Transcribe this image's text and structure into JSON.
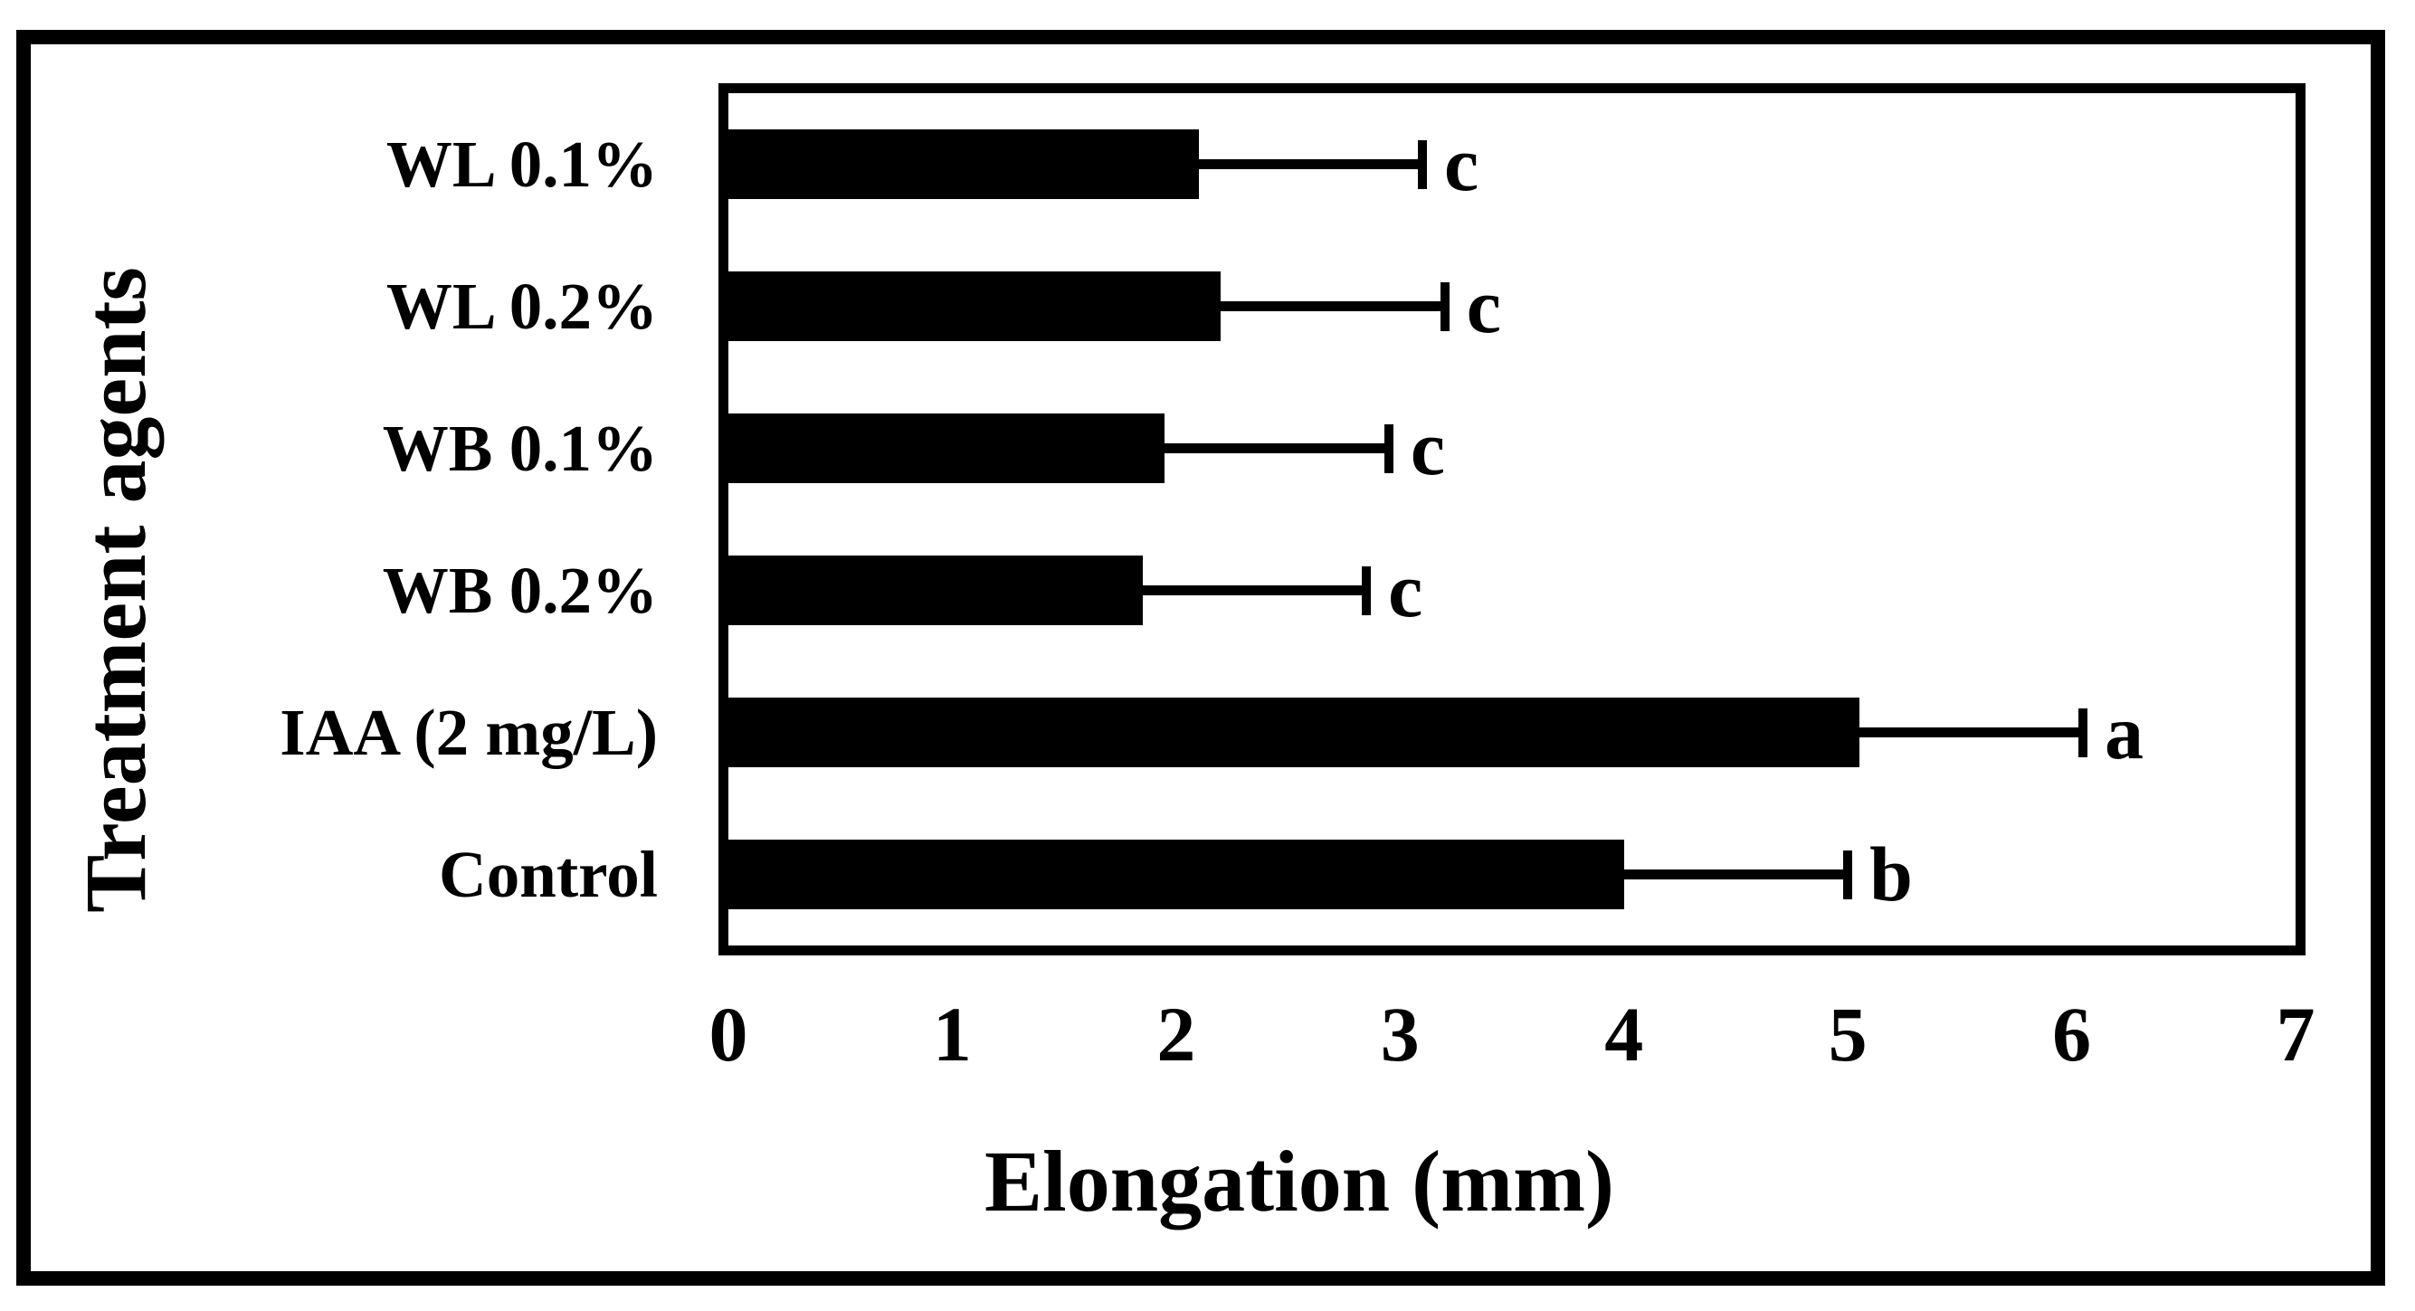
{
  "chart_data": {
    "type": "bar",
    "orientation": "horizontal",
    "title": "",
    "xlabel": "Elongation (mm)",
    "ylabel": "Treatment agents",
    "categories": [
      "WL 0.1%",
      "WL 0.2%",
      "WB 0.1%",
      "WB 0.2%",
      "IAA (2 mg/L)",
      "Control"
    ],
    "values": [
      2.1,
      2.2,
      1.95,
      1.85,
      5.05,
      4.0
    ],
    "errors": [
      1.0,
      1.0,
      1.0,
      1.0,
      1.0,
      1.0
    ],
    "sig_letters": [
      "c",
      "c",
      "c",
      "c",
      "a",
      "b"
    ],
    "xlim": [
      0,
      7
    ],
    "xticks": [
      "0",
      "1",
      "2",
      "3",
      "4",
      "5",
      "6",
      "7"
    ],
    "grid": false,
    "legend": "none",
    "bar_color": "#000000",
    "background": "#ffffff"
  }
}
